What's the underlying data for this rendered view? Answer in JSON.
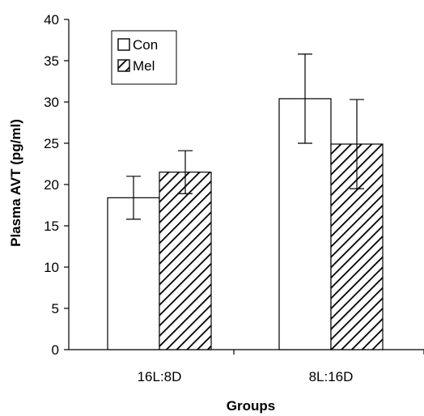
{
  "chart_data": {
    "type": "bar",
    "title": "",
    "xlabel": "Groups",
    "ylabel": "Plasma AVT (pg/ml)",
    "categories": [
      "16L:8D",
      "8L:16D"
    ],
    "ylim": [
      0,
      40
    ],
    "yticks": [
      0,
      5,
      10,
      15,
      20,
      25,
      30,
      35,
      40
    ],
    "series": [
      {
        "name": "Con",
        "fill": "white",
        "values": [
          18.4,
          30.4
        ],
        "errors": [
          2.6,
          5.4
        ]
      },
      {
        "name": "Mel",
        "fill": "hatched",
        "values": [
          21.5,
          24.9
        ],
        "errors": [
          2.6,
          5.4
        ]
      }
    ],
    "legend_position": "top-left",
    "grid": false
  }
}
